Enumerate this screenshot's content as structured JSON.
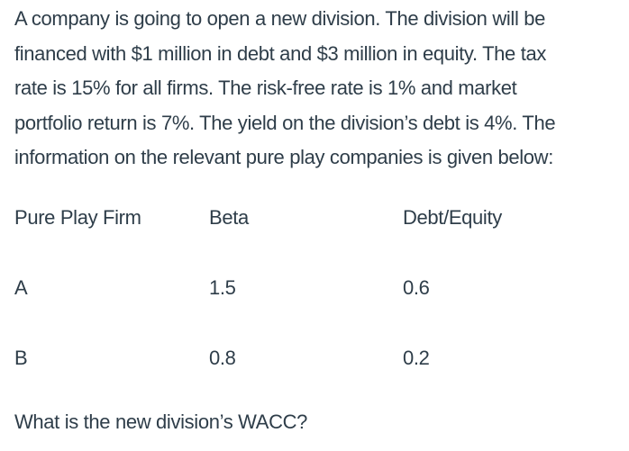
{
  "colors": {
    "text": "#2e3d49",
    "background": "#ffffff"
  },
  "question": {
    "paragraph_lines": [
      "A company is going to open a new division. The division will be",
      "financed with $1 million in debt and $3 million in equity. The tax",
      "rate is 15% for all firms. The risk-free rate is 1% and market",
      "portfolio return is 7%. The yield on the division’s debt is 4%. The",
      "information on the relevant pure play companies is given below:"
    ],
    "table": {
      "headers": [
        "Pure Play Firm",
        "Beta",
        "Debt/Equity"
      ],
      "rows": [
        {
          "firm": "A",
          "beta": "1.5",
          "debt_equity": "0.6"
        },
        {
          "firm": "B",
          "beta": "0.8",
          "debt_equity": "0.2"
        }
      ]
    },
    "prompt": "What is the new division’s WACC?"
  }
}
